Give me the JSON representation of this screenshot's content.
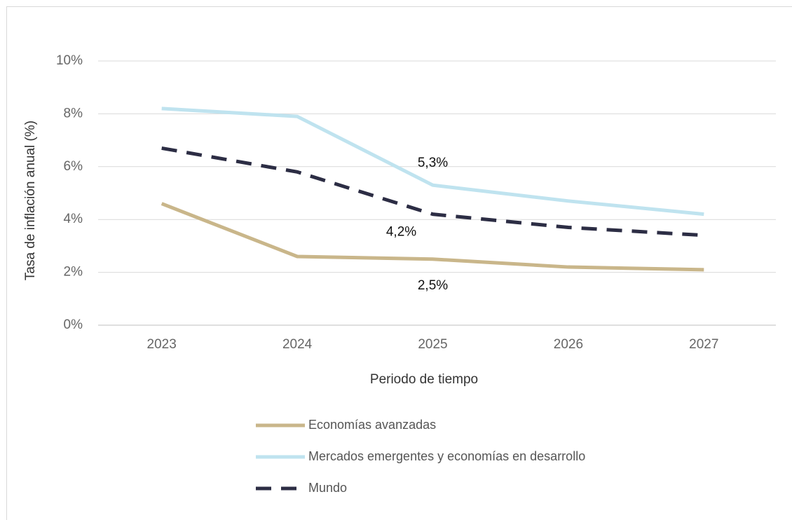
{
  "chart_data": {
    "type": "line",
    "x_label": "Periodo de tiempo",
    "y_label": "Tasa de inflación anual (%)",
    "categories": [
      "2023",
      "2024",
      "2025",
      "2026",
      "2027"
    ],
    "series": [
      {
        "name": "Economías avanzadas",
        "color": "#c9b68a",
        "dash": false,
        "values": [
          4.6,
          2.6,
          2.5,
          2.2,
          2.1
        ],
        "value_labels": [
          null,
          null,
          "2,5%",
          null,
          null
        ]
      },
      {
        "name": "Mercados emergentes y economías en desarrollo",
        "color": "#bfe3ef",
        "dash": false,
        "values": [
          8.2,
          7.9,
          5.3,
          4.7,
          4.2
        ],
        "value_labels": [
          null,
          null,
          "5,3%",
          null,
          null
        ]
      },
      {
        "name": "Mundo",
        "color": "#2c2d44",
        "dash": true,
        "values": [
          6.7,
          5.8,
          4.2,
          3.7,
          3.4
        ],
        "value_labels": [
          null,
          null,
          "4,2%",
          null,
          null
        ]
      }
    ],
    "ylim": [
      0,
      10
    ],
    "yticks": [
      {
        "value": 0,
        "label": "0%"
      },
      {
        "value": 2,
        "label": "2%"
      },
      {
        "value": 4,
        "label": "4%"
      },
      {
        "value": 6,
        "label": "6%"
      },
      {
        "value": 8,
        "label": "8%"
      },
      {
        "value": 10,
        "label": "10%"
      }
    ],
    "grid": true,
    "legend": "bottom"
  }
}
